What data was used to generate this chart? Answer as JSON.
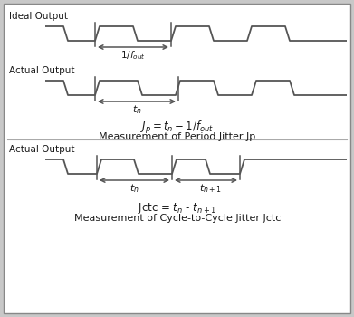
{
  "bg_color": "#c8c8c8",
  "inner_bg": "#ffffff",
  "line_color": "#404040",
  "text_color": "#1a1a1a",
  "border_color": "#888888",
  "waveform_color": "#555555",
  "title1": "Ideal Output",
  "title2": "Actual Output",
  "title3": "Actual Output",
  "formula1": "Jₚ = tₙ − 1/ fₒᵤₜ",
  "label1": "Measurement of Period Jitter Jp",
  "formula2": "Jctc = tₙ - tₙ₊₁",
  "label2": "Measurement of Cycle-to-Cycle Jitter Jctc"
}
